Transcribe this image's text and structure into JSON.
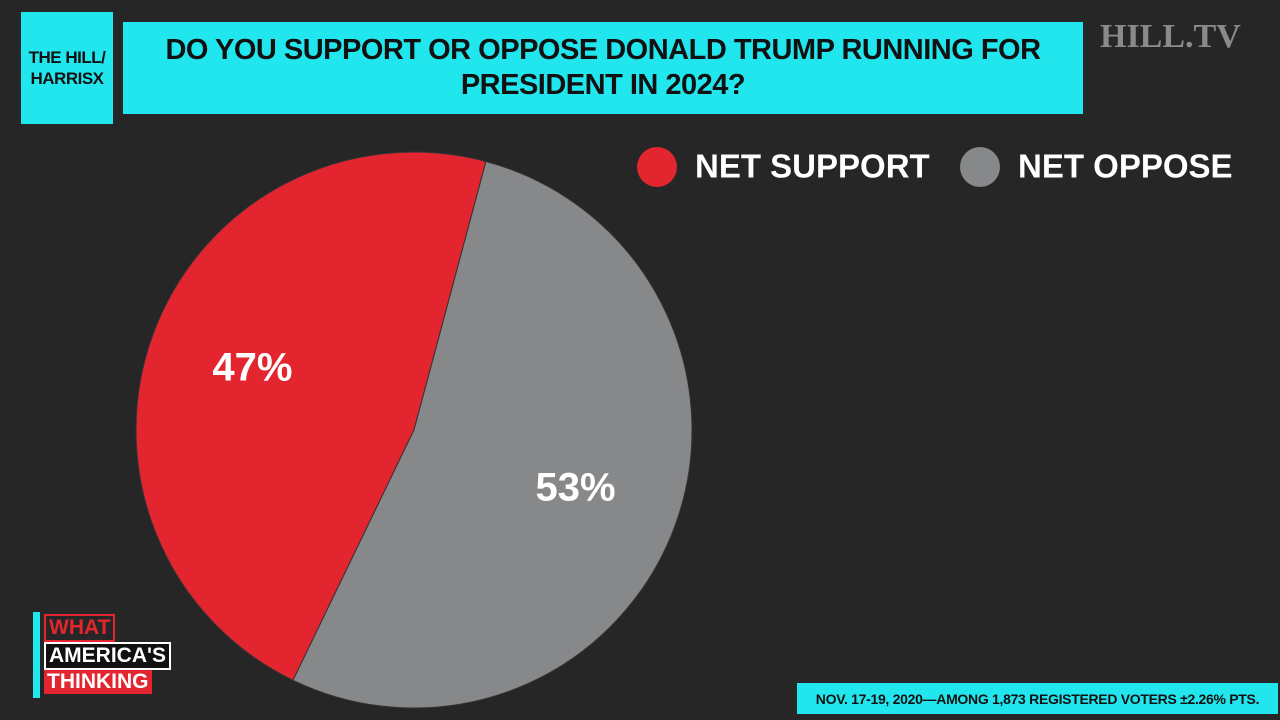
{
  "chart_data": {
    "type": "pie",
    "title": "DO YOU SUPPORT OR OPPOSE DONALD TRUMP RUNNING FOR PRESIDENT IN 2024?",
    "source_badge": [
      "THE HILL/",
      "HARRISX"
    ],
    "watermark": "HILL.TV",
    "categories": [
      "NET SUPPORT",
      "NET OPPOSE"
    ],
    "values": [
      47,
      53
    ],
    "value_labels": [
      "47%",
      "53%"
    ],
    "colors": [
      "#e32530",
      "#87888a"
    ],
    "legend": "top-right",
    "logo_lines": [
      "WHAT",
      "AMERICA'S",
      "THINKING"
    ],
    "footnote": "NOV. 17-19, 2020—AMONG 1,873 REGISTERED VOTERS ±2.26% PTS."
  }
}
